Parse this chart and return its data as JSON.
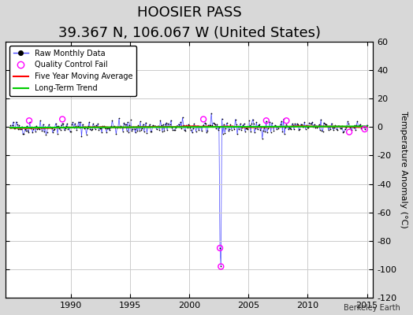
{
  "title": "HOOSIER PASS",
  "subtitle": "39.367 N, 106.067 W (United States)",
  "ylabel": "Temperature Anomaly (°C)",
  "watermark": "Berkeley Earth",
  "xlim": [
    1984.5,
    2015.5
  ],
  "ylim": [
    -120,
    60
  ],
  "yticks": [
    -120,
    -100,
    -80,
    -60,
    -40,
    -20,
    0,
    20,
    40,
    60
  ],
  "xticks": [
    1990,
    1995,
    2000,
    2005,
    2010,
    2015
  ],
  "bg_color": "#d8d8d8",
  "plot_bg_color": "#ffffff",
  "raw_line_color": "#4444ff",
  "raw_dot_color": "#000000",
  "qc_fail_color": "#ff00ff",
  "moving_avg_color": "#ff0000",
  "trend_color": "#00cc00",
  "grid_color": "#cccccc",
  "title_fontsize": 13,
  "subtitle_fontsize": 9,
  "ylabel_fontsize": 8,
  "tick_fontsize": 8,
  "seed": 42,
  "n_points": 372,
  "start_year": 1984.917,
  "end_year": 2015.0,
  "spike_idx1": 218,
  "spike_idx2": 219,
  "spike_val1": -85,
  "spike_val2": -98,
  "noise_std": 2.5,
  "qc_near_zero_years": [
    1986.5,
    1989.3,
    2001.2,
    2006.5,
    2008.2,
    2013.5,
    2014.8
  ],
  "qc_near_zero_vals": [
    4.5,
    5.5,
    5.5,
    4.5,
    4.5,
    -3.5,
    -1.5
  ]
}
